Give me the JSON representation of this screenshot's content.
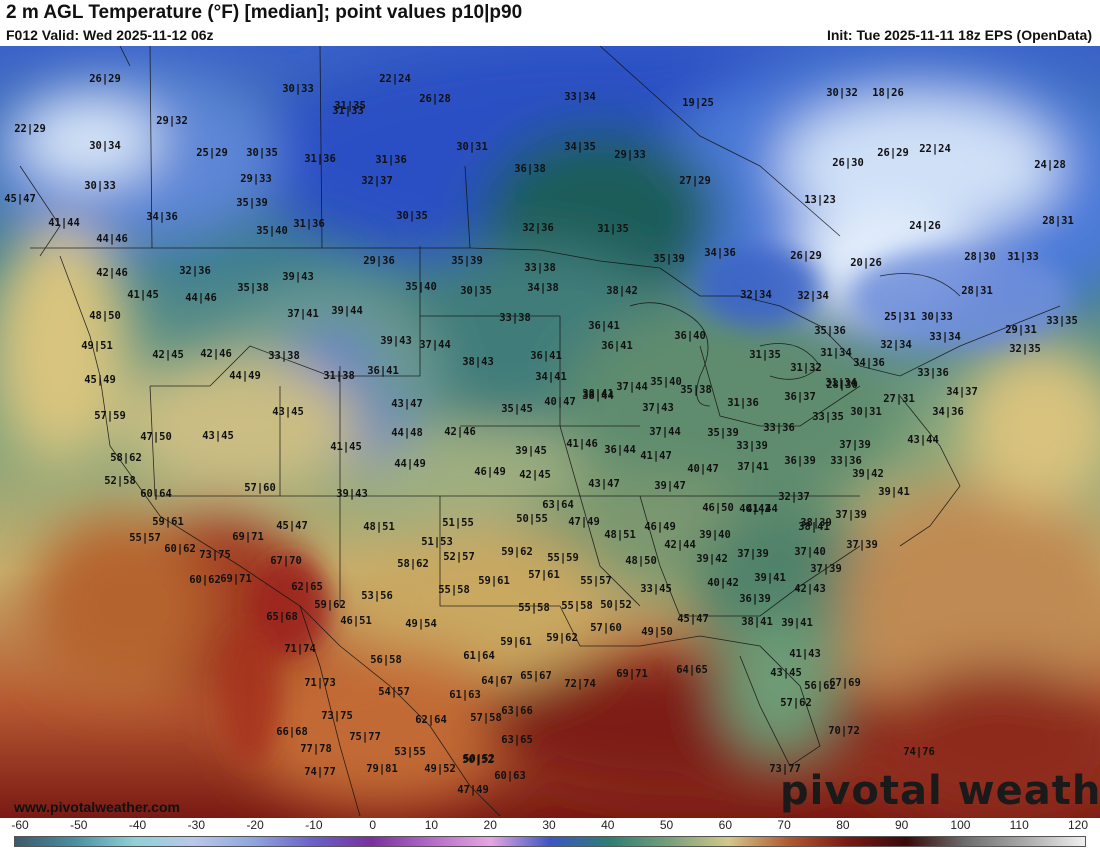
{
  "header": {
    "title": "2 m AGL Temperature (°F) [median]; point values p10|p90",
    "valid": "F012 Valid: Wed 2025-11-12 06z",
    "init": "Init: Tue 2025-11-11 18z EPS (OpenData)"
  },
  "footer": {
    "credit": "www.pivotalweather.com",
    "logo": "pivotal weather"
  },
  "colorbar": {
    "ticks": [
      "-60",
      "-50",
      "-40",
      "-30",
      "-20",
      "-10",
      "0",
      "10",
      "20",
      "30",
      "40",
      "50",
      "60",
      "70",
      "80",
      "90",
      "100",
      "110",
      "120"
    ]
  },
  "colors": {
    "cold_blue": "#2f57c8",
    "teal_green": "#2f6a5a",
    "warm_red": "#9a2418",
    "tan": "#d8c98a"
  },
  "point_values": [
    "26|29",
    "30|33",
    "22|24",
    "26|28",
    "29|32",
    "22|29",
    "30|34",
    "25|29",
    "30|35",
    "31|33",
    "33|34",
    "19|25",
    "30|32",
    "18|26",
    "31|35",
    "31|36",
    "30|31",
    "34|35",
    "29|33",
    "26|30",
    "26|29",
    "22|24",
    "24|28",
    "30|33",
    "29|33",
    "32|37",
    "36|38",
    "27|29",
    "45|47",
    "35|39",
    "13|23",
    "34|36",
    "41|44",
    "30|35",
    "31|36",
    "31|36",
    "32|36",
    "31|35",
    "24|26",
    "28|31",
    "44|46",
    "35|40",
    "29|36",
    "35|39",
    "33|38",
    "35|39",
    "34|36",
    "26|29",
    "20|26",
    "28|30",
    "31|33",
    "42|46",
    "32|36",
    "39|43",
    "35|40",
    "30|35",
    "34|38",
    "38|42",
    "32|34",
    "32|34",
    "28|31",
    "41|45",
    "44|46",
    "35|38",
    "48|50",
    "37|41",
    "39|44",
    "33|38",
    "36|41",
    "25|31",
    "30|33",
    "29|31",
    "33|35",
    "49|51",
    "42|45",
    "42|46",
    "33|38",
    "39|43",
    "37|44",
    "36|41",
    "36|40",
    "33|34",
    "35|36",
    "45|49",
    "44|49",
    "31|38",
    "36|41",
    "38|43",
    "34|41",
    "36|41",
    "31|35",
    "31|32",
    "31|34",
    "34|36",
    "32|34",
    "32|35",
    "43|45",
    "37|44",
    "38|41",
    "31|34",
    "28|30",
    "33|36",
    "57|59",
    "35|45",
    "40|47",
    "38|44",
    "35|40",
    "35|38",
    "36|37",
    "27|31",
    "34|37",
    "47|50",
    "43|45",
    "43|47",
    "37|43",
    "31|36",
    "30|31",
    "34|36",
    "41|45",
    "44|48",
    "42|46",
    "37|44",
    "35|39",
    "33|36",
    "33|35",
    "58|62",
    "39|45",
    "41|46",
    "36|44",
    "41|47",
    "33|39",
    "37|39",
    "43|44",
    "52|58",
    "44|49",
    "46|49",
    "42|45",
    "40|47",
    "37|41",
    "36|39",
    "33|36",
    "39|42",
    "60|64",
    "57|60",
    "39|43",
    "43|47",
    "39|47",
    "32|37",
    "40|42",
    "63|64",
    "46|50",
    "41|44",
    "38|39",
    "39|41",
    "59|61",
    "45|47",
    "48|51",
    "51|55",
    "50|55",
    "47|49",
    "48|51",
    "46|49",
    "38|41",
    "37|39",
    "55|57",
    "69|71",
    "51|53",
    "39|40",
    "42|44",
    "37|40",
    "37|39",
    "60|62",
    "73|75",
    "67|70",
    "58|62",
    "52|57",
    "59|62",
    "55|59",
    "48|50",
    "39|42",
    "37|39",
    "37|39",
    "60|62",
    "69|71",
    "62|65",
    "57|61",
    "55|57",
    "40|42",
    "39|41",
    "59|62",
    "53|56",
    "55|58",
    "59|61",
    "33|45",
    "42|43",
    "65|68",
    "55|58",
    "55|58",
    "50|52",
    "36|39",
    "46|51",
    "49|54",
    "59|62",
    "57|60",
    "49|50",
    "45|47",
    "38|41",
    "39|41",
    "71|74",
    "56|58",
    "61|64",
    "59|61",
    "41|43",
    "71|73",
    "54|57",
    "61|63",
    "64|67",
    "65|67",
    "72|74",
    "69|71",
    "64|65",
    "43|45",
    "56|62",
    "73|75",
    "62|64",
    "57|58",
    "63|66",
    "50|52",
    "57|62",
    "67|69",
    "66|68",
    "75|77",
    "63|65",
    "70|72",
    "77|78",
    "53|55",
    "50|52",
    "74|76",
    "74|77",
    "79|81",
    "49|52",
    "60|63",
    "47|49",
    "73|77"
  ]
}
